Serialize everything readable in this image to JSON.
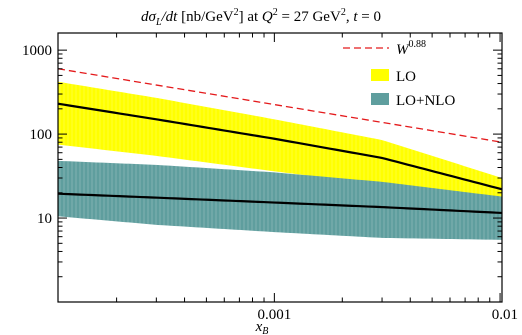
{
  "chart_data": {
    "type": "area",
    "title": {
      "parts": [
        {
          "t": "dσ",
          "style": "italic"
        },
        {
          "t": "L",
          "style": "italic",
          "shift": "sub"
        },
        {
          "t": "/",
          "style": "italic"
        },
        {
          "t": "dt",
          "style": "italic"
        },
        {
          "t": " [nb/GeV",
          "style": "normal"
        },
        {
          "t": "2",
          "style": "normal",
          "shift": "super"
        },
        {
          "t": "] at ",
          "style": "normal"
        },
        {
          "t": "Q",
          "style": "italic"
        },
        {
          "t": "2",
          "style": "normal",
          "shift": "super"
        },
        {
          "t": " = 27 GeV",
          "style": "normal"
        },
        {
          "t": "2",
          "style": "normal",
          "shift": "super"
        },
        {
          "t": ", ",
          "style": "normal"
        },
        {
          "t": "t",
          "style": "italic"
        },
        {
          "t": " = 0",
          "style": "normal"
        }
      ]
    },
    "xlabel": {
      "main": "x",
      "sub": "B"
    },
    "ylabel": "",
    "xscale": "log",
    "yscale": "log",
    "xlim": [
      0.00011,
      0.0102
    ],
    "ylim": [
      1.0,
      1600
    ],
    "xticks": [
      {
        "value": 0.001,
        "label": "0.001"
      },
      {
        "value": 0.01,
        "label": "0.01"
      }
    ],
    "yticks": [
      {
        "value": 10,
        "label": "10"
      },
      {
        "value": 100,
        "label": "100"
      },
      {
        "value": 1000,
        "label": "1000"
      }
    ],
    "colors": {
      "lo_band": "#ffff00",
      "nlo_band": "#5f9e9e",
      "central": "#000000",
      "w_line": "#e41a1c",
      "stripe": "#ffffff"
    },
    "legend": {
      "position": "top-right",
      "entries": [
        {
          "key": "w",
          "label_main": "W",
          "label_sup": "0.88",
          "kind": "dashed-line"
        },
        {
          "key": "lo",
          "label_main": "LO",
          "kind": "patch"
        },
        {
          "key": "nlo",
          "label_main": "LO+NLO",
          "kind": "patch"
        }
      ]
    },
    "series": [
      {
        "key": "w",
        "x": [
          0.00011,
          0.0102
        ],
        "y": [
          600,
          80
        ]
      },
      {
        "key": "lo",
        "x": [
          0.00011,
          0.0003,
          0.001,
          0.003,
          0.0102
        ],
        "upper": [
          420,
          270,
          150,
          85,
          30
        ],
        "lower": [
          75,
          55,
          36,
          25,
          16
        ],
        "central": [
          230,
          150,
          88,
          52,
          22
        ]
      },
      {
        "key": "nlo",
        "x": [
          0.00011,
          0.0003,
          0.001,
          0.003,
          0.0102
        ],
        "upper": [
          48,
          43,
          35,
          27,
          18
        ],
        "lower": [
          10.5,
          8.3,
          6.8,
          5.8,
          5.5
        ],
        "central": [
          19.5,
          17.5,
          15.3,
          13.5,
          11.5
        ]
      }
    ]
  }
}
